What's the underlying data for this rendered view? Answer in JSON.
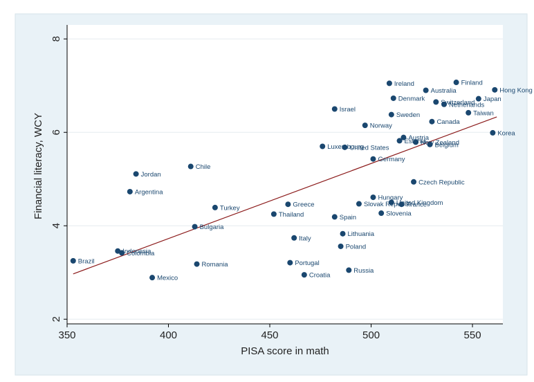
{
  "chart_data": {
    "type": "scatter",
    "xlabel": "PISA score in math",
    "ylabel": "Financial literacy, WCY",
    "xlim": [
      350,
      565
    ],
    "ylim": [
      1.9,
      8.3
    ],
    "xticks": [
      350,
      400,
      450,
      500,
      550
    ],
    "yticks": [
      2,
      4,
      6,
      8
    ],
    "grid": "y",
    "colors": {
      "outer_background": "#ffffff",
      "plot_region": "#e9f2f7",
      "plot_area": "#ffffff",
      "point": "#1a476f",
      "label": "#1a476f",
      "fit_line": "#8b1a1a",
      "grid": "#e5ecef"
    },
    "fit_line": {
      "x": [
        353,
        562
      ],
      "y": [
        2.97,
        6.33
      ]
    },
    "points": [
      {
        "label": "Brazil",
        "x": 353,
        "y": 3.25
      },
      {
        "label": "Indonesia",
        "x": 375,
        "y": 3.46
      },
      {
        "label": "Colombia",
        "x": 377,
        "y": 3.42
      },
      {
        "label": "Argentina",
        "x": 381,
        "y": 4.73
      },
      {
        "label": "Jordan",
        "x": 384,
        "y": 5.11
      },
      {
        "label": "Mexico",
        "x": 392,
        "y": 2.89
      },
      {
        "label": "Chile",
        "x": 411,
        "y": 5.27
      },
      {
        "label": "Bulgaria",
        "x": 413,
        "y": 3.98
      },
      {
        "label": "Romania",
        "x": 414,
        "y": 3.18
      },
      {
        "label": "Turkey",
        "x": 423,
        "y": 4.39
      },
      {
        "label": "Thailand",
        "x": 452,
        "y": 4.25
      },
      {
        "label": "Greece",
        "x": 459,
        "y": 4.46
      },
      {
        "label": "Portugal",
        "x": 460,
        "y": 3.21
      },
      {
        "label": "Italy",
        "x": 462,
        "y": 3.74
      },
      {
        "label": "Croatia",
        "x": 467,
        "y": 2.95
      },
      {
        "label": "Luxembourg",
        "x": 476,
        "y": 5.7
      },
      {
        "label": "Israel",
        "x": 482,
        "y": 6.5
      },
      {
        "label": "Spain",
        "x": 482,
        "y": 4.19
      },
      {
        "label": "Poland",
        "x": 485,
        "y": 3.56
      },
      {
        "label": "Lithuania",
        "x": 486,
        "y": 3.83
      },
      {
        "label": "United States",
        "x": 487,
        "y": 5.68
      },
      {
        "label": "Russia",
        "x": 489,
        "y": 3.05
      },
      {
        "label": "Slovak Republic",
        "x": 494,
        "y": 4.47
      },
      {
        "label": "Norway",
        "x": 497,
        "y": 6.15
      },
      {
        "label": "Hungary",
        "x": 501,
        "y": 4.61
      },
      {
        "label": "Germany",
        "x": 501,
        "y": 5.43
      },
      {
        "label": "Slovenia",
        "x": 505,
        "y": 4.27
      },
      {
        "label": "Ireland",
        "x": 509,
        "y": 7.05
      },
      {
        "label": "United Kingdom",
        "x": 510,
        "y": 4.5
      },
      {
        "label": "Sweden",
        "x": 510,
        "y": 6.38
      },
      {
        "label": "Denmark",
        "x": 511,
        "y": 6.73
      },
      {
        "label": "Estonia",
        "x": 514,
        "y": 5.82
      },
      {
        "label": "France",
        "x": 515,
        "y": 4.46
      },
      {
        "label": "Austria",
        "x": 516,
        "y": 5.89
      },
      {
        "label": "Czech Republic",
        "x": 521,
        "y": 4.94
      },
      {
        "label": "New Zealand",
        "x": 522,
        "y": 5.79
      },
      {
        "label": "Australia",
        "x": 527,
        "y": 6.9
      },
      {
        "label": "Belgium",
        "x": 529,
        "y": 5.74
      },
      {
        "label": "Canada",
        "x": 530,
        "y": 6.23
      },
      {
        "label": "Switzerland",
        "x": 532,
        "y": 6.65
      },
      {
        "label": "Netherlands",
        "x": 536,
        "y": 6.6
      },
      {
        "label": "Finland",
        "x": 542,
        "y": 7.07
      },
      {
        "label": "Taiwan",
        "x": 548,
        "y": 6.42
      },
      {
        "label": "Japan",
        "x": 553,
        "y": 6.72
      },
      {
        "label": "Korea",
        "x": 560,
        "y": 5.99
      },
      {
        "label": "Hong Kong",
        "x": 561,
        "y": 6.91
      }
    ]
  }
}
